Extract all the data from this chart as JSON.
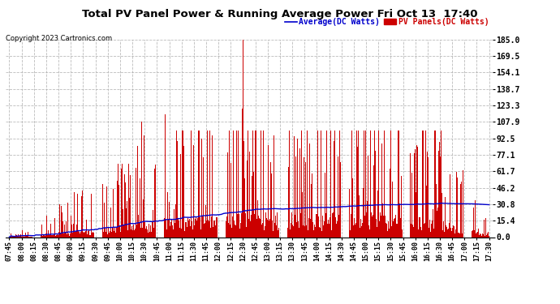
{
  "title": "Total PV Panel Power & Running Average Power Fri Oct 13  17:40",
  "copyright": "Copyright 2023 Cartronics.com",
  "legend_average": "Average(DC Watts)",
  "legend_pv": "PV Panels(DC Watts)",
  "yticks": [
    0.0,
    15.4,
    30.8,
    46.2,
    61.7,
    77.1,
    92.5,
    107.9,
    123.3,
    138.7,
    154.1,
    169.5,
    185.0
  ],
  "ymax": 185.0,
  "ymin": 0.0,
  "bar_color": "#cc0000",
  "avg_color": "#0000cc",
  "background_color": "#ffffff",
  "grid_color": "#aaaaaa",
  "title_color": "#000000",
  "copyright_color": "#000000",
  "legend_avg_color": "#0000cc",
  "legend_pv_color": "#cc0000",
  "xtick_labels": [
    "07:45",
    "08:00",
    "08:15",
    "08:30",
    "08:45",
    "09:00",
    "09:15",
    "09:30",
    "09:45",
    "10:00",
    "10:15",
    "10:30",
    "10:45",
    "11:00",
    "11:15",
    "11:30",
    "11:45",
    "12:00",
    "12:15",
    "12:30",
    "12:45",
    "13:00",
    "13:15",
    "13:30",
    "13:45",
    "14:00",
    "14:15",
    "14:30",
    "14:45",
    "15:00",
    "15:15",
    "15:30",
    "15:45",
    "16:00",
    "16:15",
    "16:30",
    "16:45",
    "17:00",
    "17:15",
    "17:30"
  ]
}
